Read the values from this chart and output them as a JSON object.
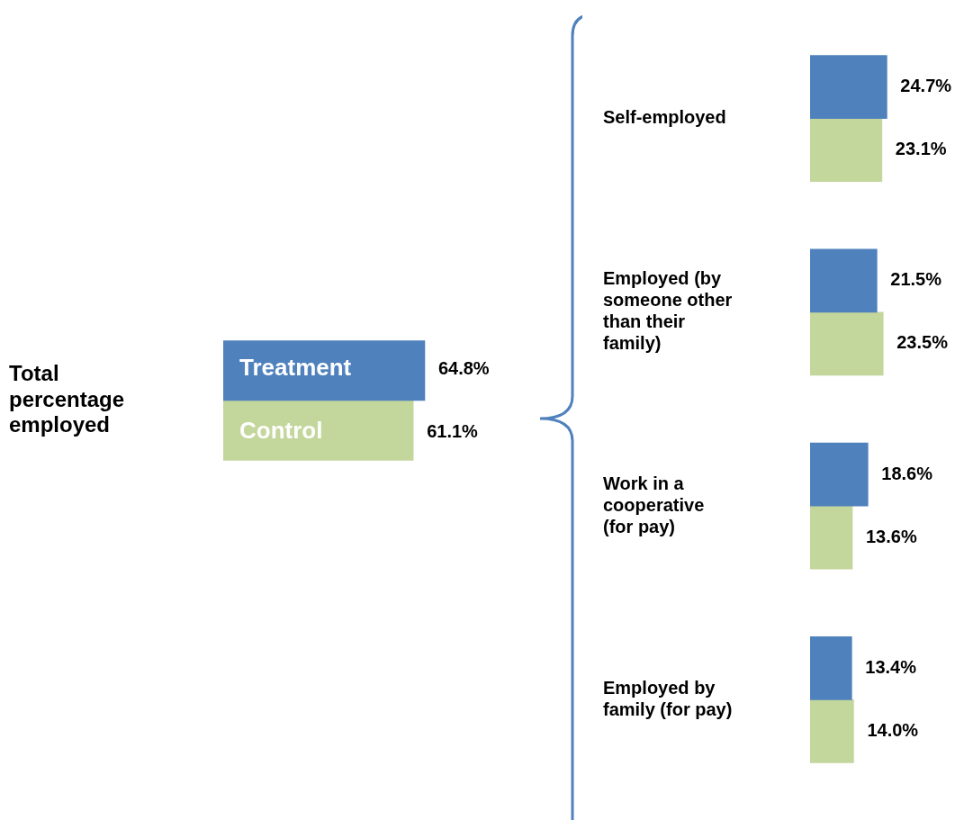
{
  "chart_data": [
    {
      "type": "bar",
      "orientation": "horizontal",
      "categories": [
        "Total percentage employed"
      ],
      "series": [
        {
          "name": "Treatment",
          "color": "#4f81bd",
          "values": [
            64.8
          ],
          "value_labels": [
            "64.8%"
          ]
        },
        {
          "name": "Control",
          "color": "#c3d69b",
          "values": [
            61.1
          ],
          "value_labels": [
            "61.1%"
          ]
        }
      ]
    },
    {
      "type": "bar",
      "orientation": "horizontal",
      "categories": [
        "Self-employed",
        "Employed (by someone other than their family)",
        "Work in a cooperative (for pay)",
        "Employed by family (for pay)"
      ],
      "series": [
        {
          "color": "#4f81bd",
          "values": [
            24.7,
            21.5,
            18.6,
            13.4
          ],
          "value_labels": [
            "24.7%",
            "21.5%",
            "18.6%",
            "13.4%"
          ]
        },
        {
          "color": "#c3d69b",
          "values": [
            23.1,
            23.5,
            13.6,
            14.0
          ],
          "value_labels": [
            "23.1%",
            "23.5%",
            "13.6%",
            "14.0%"
          ]
        }
      ]
    }
  ]
}
